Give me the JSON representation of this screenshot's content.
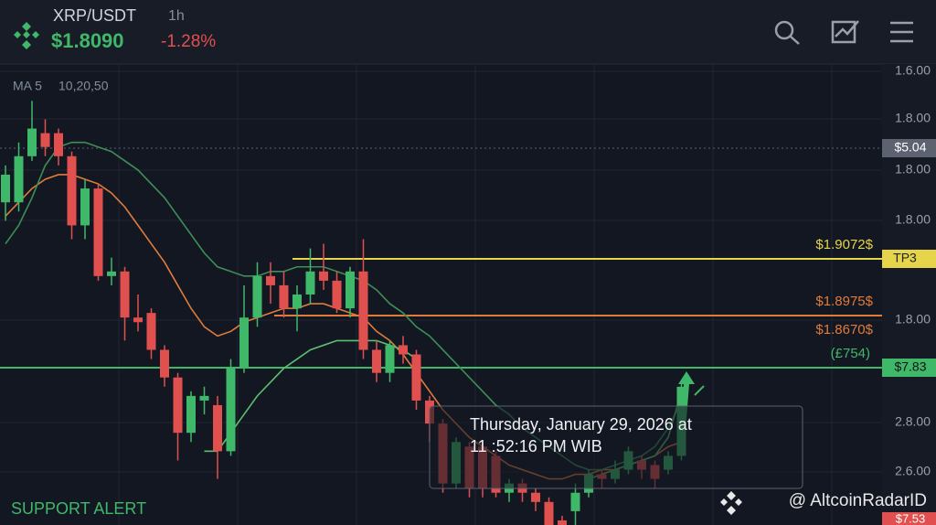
{
  "header": {
    "pair": "XRP/USDT",
    "interval": "1h",
    "price": "$1.8090",
    "change": "-1.28%"
  },
  "indicator_label": "MA 5",
  "indicator_periods": "10,20,50",
  "y_axis_labels": [
    "1.6.00",
    "1.8.00",
    "1.8.00",
    "1.8.00",
    "1.8.00",
    "2.8.00",
    "2.6.00"
  ],
  "price_tags": {
    "current": "$5.04",
    "tp3": "TP3",
    "support": "$7.83",
    "bottom": "$7.53"
  },
  "level_labels": {
    "tp3_price": "$1.9072$",
    "level_a": "$1.8975$",
    "level_b": "$1.8670$",
    "support_note": "(£754)"
  },
  "tooltip": {
    "line1": "Thursday, January 29, 2026 at",
    "line2": "11 :52:16 PM WIB"
  },
  "alert": "SUPPORT ALERT",
  "watermark": "@ AltcoinRadarID",
  "chart_data": {
    "type": "candlestick",
    "ylim": [
      0,
      100
    ],
    "up_color": "#3fb86a",
    "down_color": "#e0504f",
    "open": [
      70,
      70,
      80,
      85,
      85,
      80,
      65,
      73,
      54,
      55,
      45,
      46,
      38,
      32,
      20,
      27,
      26,
      16,
      34,
      45,
      54,
      52,
      47,
      50,
      55,
      53,
      47,
      55,
      38,
      33,
      39,
      37,
      27,
      22,
      9,
      17,
      17,
      15,
      7,
      9,
      7,
      5,
      1,
      3,
      7,
      11,
      10,
      12,
      14,
      13,
      12,
      15
    ],
    "high": [
      78,
      83,
      92,
      88,
      86,
      81,
      75,
      74,
      58,
      56,
      50,
      47,
      39,
      33,
      29,
      30,
      28,
      36,
      52,
      57,
      57,
      55,
      52,
      60,
      61,
      55,
      56,
      62,
      40,
      40,
      41,
      38,
      28,
      23,
      19,
      18,
      18,
      16,
      10,
      10,
      8,
      6,
      2,
      9,
      12,
      12,
      14,
      17,
      15,
      14,
      16,
      31
    ],
    "low": [
      66,
      68,
      79,
      80,
      78,
      62,
      62,
      53,
      52,
      40,
      42,
      36,
      30,
      14,
      18,
      24,
      10,
      15,
      33,
      43,
      48,
      45,
      42,
      48,
      51,
      46,
      45,
      36,
      31,
      31,
      35,
      25,
      18,
      7,
      8,
      6,
      6,
      6,
      5,
      5,
      3,
      0,
      0,
      0,
      6,
      8,
      9,
      11,
      10,
      8,
      11,
      14
    ],
    "close": [
      76,
      80,
      86,
      82,
      80,
      65,
      73,
      54,
      55,
      45,
      44,
      38,
      32,
      20,
      28,
      28,
      16,
      34,
      45,
      54,
      52,
      47,
      50,
      55,
      53,
      47,
      55,
      38,
      33,
      39,
      37,
      27,
      22,
      9,
      18,
      8,
      8,
      7,
      9,
      7,
      5,
      0,
      0,
      7,
      11,
      10,
      12,
      16,
      12,
      10,
      15,
      30
    ],
    "series": [
      {
        "color": "#e07b3c",
        "values": [
          67,
          70,
          73,
          75,
          76,
          76,
          75,
          74,
          72,
          69,
          65,
          61,
          57,
          52,
          47,
          43,
          41,
          42,
          44,
          45,
          46,
          47,
          47,
          48,
          48,
          47,
          46,
          45,
          42,
          40,
          37,
          33,
          29,
          25,
          22,
          19,
          17,
          15,
          13,
          12,
          11,
          10,
          10,
          11,
          11,
          12,
          12,
          13,
          14,
          15,
          17,
          18
        ]
      },
      {
        "color": "#3e8e55",
        "values": [
          61,
          65,
          71,
          78,
          82,
          83,
          83,
          82,
          81,
          79,
          77,
          74,
          71,
          67,
          63,
          59,
          56,
          55,
          54,
          54,
          55,
          55,
          56,
          56,
          56,
          55,
          54,
          53,
          51,
          48,
          46,
          43,
          41,
          38,
          35,
          32,
          29,
          26,
          24,
          21,
          19,
          17,
          15,
          13,
          12,
          12,
          13,
          14,
          15,
          17,
          21,
          27
        ]
      },
      {
        "color": "#5cbf70",
        "values": [
          null,
          null,
          null,
          null,
          null,
          null,
          null,
          null,
          null,
          null,
          null,
          null,
          null,
          null,
          null,
          16,
          16,
          20,
          24,
          28,
          31,
          34,
          36,
          38,
          39,
          40,
          40,
          40,
          40,
          39,
          38,
          36,
          null,
          null,
          null,
          null,
          null,
          null,
          null,
          null,
          null,
          null,
          null,
          null,
          10,
          11,
          12,
          13,
          14,
          15,
          19,
          29
        ]
      }
    ]
  }
}
